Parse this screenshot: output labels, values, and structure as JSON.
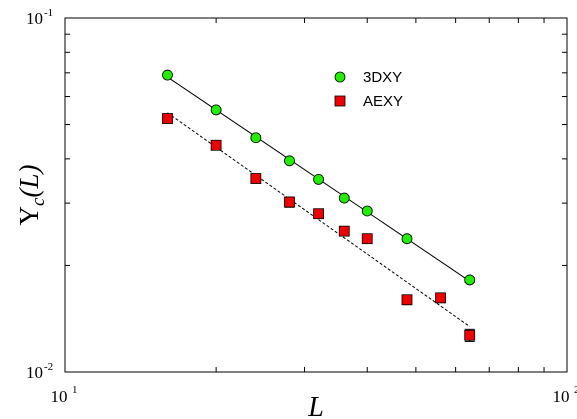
{
  "chart_data": {
    "type": "scatter",
    "title": "",
    "xlabel": "L",
    "ylabel": "Y_c(L)",
    "x_scale": "log",
    "y_scale": "log",
    "xlim": [
      10,
      100
    ],
    "ylim": [
      0.01,
      0.1
    ],
    "x_ticks": [
      {
        "value": 10,
        "base": "10",
        "exp": "1"
      },
      {
        "value": 100,
        "base": "10",
        "exp": "2"
      }
    ],
    "y_ticks": [
      {
        "value": 0.01,
        "base": "10",
        "exp": "-2"
      },
      {
        "value": 0.1,
        "base": "10",
        "exp": "-1"
      }
    ],
    "grid": false,
    "legend_position": "top-right",
    "series": [
      {
        "name": "3DXY",
        "color": "#22ee00",
        "marker": "circle",
        "fit_line": "solid",
        "x": [
          16,
          20,
          24,
          28,
          32,
          36,
          40,
          48,
          64
        ],
        "y": [
          0.069,
          0.055,
          0.0459,
          0.0395,
          0.035,
          0.031,
          0.0285,
          0.0238,
          0.0182
        ],
        "err": [
          0.0006,
          0.0006,
          0.0005,
          0.0005,
          0.0004,
          0.0004,
          0.0004,
          0.0004,
          0.0003
        ]
      },
      {
        "name": "AEXY",
        "color": "#ee0000",
        "marker": "square",
        "fit_line": "dashed",
        "x": [
          16,
          20,
          24,
          28,
          32,
          36,
          40,
          48,
          56,
          64
        ],
        "y": [
          0.052,
          0.0437,
          0.0352,
          0.0302,
          0.028,
          0.025,
          0.0238,
          0.016,
          0.0162,
          0.0127
        ],
        "err": [
          0.001,
          0.0008,
          0.0008,
          0.001,
          0.0006,
          0.0005,
          0.0006,
          0.0005,
          0.0005,
          0.0005
        ]
      }
    ]
  }
}
